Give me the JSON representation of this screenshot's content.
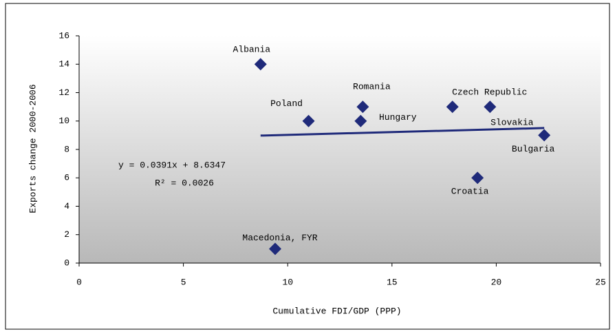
{
  "chart_data": {
    "type": "scatter",
    "xlabel": "Cumulative FDI/GDP (PPP)",
    "ylabel": "Exports change 2000-2006",
    "xlim": [
      0,
      25
    ],
    "xticks": [
      0,
      5,
      10,
      15,
      20,
      25
    ],
    "ylim": [
      0,
      16
    ],
    "yticks": [
      0,
      2,
      4,
      6,
      8,
      10,
      12,
      14,
      16
    ],
    "color": "#1f2a7a",
    "points": [
      {
        "name": "Albania",
        "x": 8.7,
        "y": 14
      },
      {
        "name": "Poland",
        "x": 11.0,
        "y": 10
      },
      {
        "name": "Romania",
        "x": 13.6,
        "y": 11
      },
      {
        "name": "Hungary",
        "x": 13.5,
        "y": 10
      },
      {
        "name": "Czech Republic",
        "x": 17.9,
        "y": 11
      },
      {
        "name": "Slovakia",
        "x": 19.7,
        "y": 11
      },
      {
        "name": "Bulgaria",
        "x": 22.3,
        "y": 9
      },
      {
        "name": "Croatia",
        "x": 19.1,
        "y": 6
      },
      {
        "name": "Macedonia, FYR",
        "x": 9.4,
        "y": 1
      }
    ],
    "trendline": {
      "slope": 0.0391,
      "intercept": 8.6347,
      "label": "y = 0.0391x + 8.6347",
      "r2_label": "R² = 0.0026"
    }
  }
}
